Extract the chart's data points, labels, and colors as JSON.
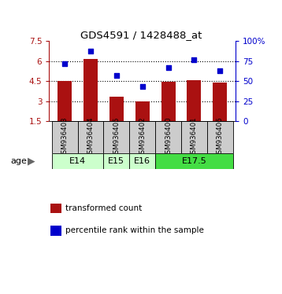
{
  "title": "GDS4591 / 1428488_at",
  "samples": [
    "GSM936403",
    "GSM936404",
    "GSM936405",
    "GSM936402",
    "GSM936400",
    "GSM936401",
    "GSM936406"
  ],
  "bar_values": [
    4.55,
    6.2,
    3.35,
    2.98,
    4.45,
    4.58,
    4.38
  ],
  "dot_values": [
    72,
    88,
    57,
    43,
    67,
    77,
    63
  ],
  "bar_color": "#aa1111",
  "dot_color": "#0000cc",
  "ylim_left": [
    1.5,
    7.5
  ],
  "ylim_right": [
    0,
    100
  ],
  "yticks_left": [
    1.5,
    3.0,
    4.5,
    6.0,
    7.5
  ],
  "yticks_right": [
    0,
    25,
    50,
    75,
    100
  ],
  "ytick_labels_left": [
    "1.5",
    "3",
    "4.5",
    "6",
    "7.5"
  ],
  "ytick_labels_right": [
    "0",
    "25",
    "50",
    "75",
    "100%"
  ],
  "age_groups": [
    {
      "label": "E14",
      "start": 0,
      "end": 2,
      "color": "#ccffcc"
    },
    {
      "label": "E15",
      "start": 2,
      "end": 3,
      "color": "#ccffcc"
    },
    {
      "label": "E16",
      "start": 3,
      "end": 4,
      "color": "#ccffcc"
    },
    {
      "label": "E17.5",
      "start": 4,
      "end": 7,
      "color": "#44dd44"
    }
  ],
  "legend_bar_label": "transformed count",
  "legend_dot_label": "percentile rank within the sample",
  "bg_color": "#ffffff",
  "sample_box_color": "#cccccc",
  "gridline_ticks": [
    3.0,
    4.5,
    6.0
  ]
}
